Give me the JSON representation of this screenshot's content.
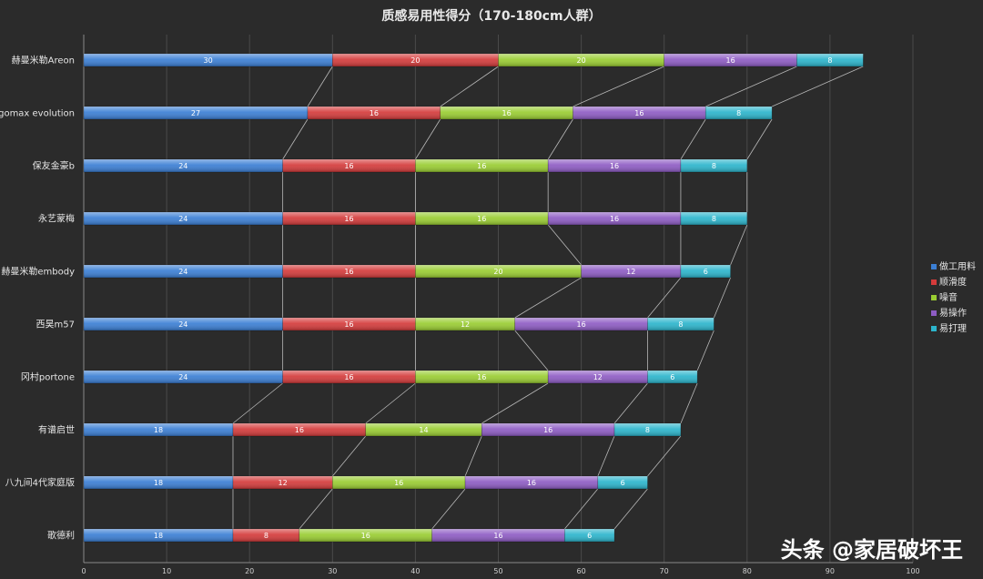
{
  "chart_data": {
    "type": "bar",
    "orientation": "horizontal",
    "stacked": true,
    "title": "质感易用性得分（170-180cm人群）",
    "categories": [
      "赫曼米勒Areon",
      "Ergomax evolution",
      "保友金豪b",
      "永艺蒙梅",
      "赫曼米勒embody",
      "西昊m57",
      "冈村portone",
      "有谱启世",
      "八九间4代家庭版",
      "歌德利"
    ],
    "series": [
      {
        "name": "做工用料",
        "color": "#3b7fd4",
        "values": [
          30,
          27,
          24,
          24,
          24,
          24,
          24,
          18,
          18,
          18
        ]
      },
      {
        "name": "顺滑度",
        "color": "#d43b3b",
        "values": [
          20,
          16,
          16,
          16,
          16,
          16,
          16,
          16,
          12,
          8
        ]
      },
      {
        "name": "噪音",
        "color": "#9acd32",
        "values": [
          20,
          16,
          16,
          16,
          20,
          12,
          16,
          14,
          16,
          16
        ]
      },
      {
        "name": "易操作",
        "color": "#8e5cc4",
        "values": [
          16,
          16,
          16,
          16,
          12,
          16,
          12,
          16,
          16,
          16
        ]
      },
      {
        "name": "易打理",
        "color": "#2cb5cc",
        "values": [
          8,
          8,
          8,
          8,
          6,
          8,
          6,
          8,
          6,
          6
        ]
      }
    ],
    "xlim": [
      0,
      100
    ],
    "xticks": [
      0,
      10,
      20,
      30,
      40,
      50,
      60,
      70,
      80,
      90,
      100
    ],
    "grid": true,
    "legend_position": "right"
  },
  "watermark": "头条 @家居破坏王"
}
